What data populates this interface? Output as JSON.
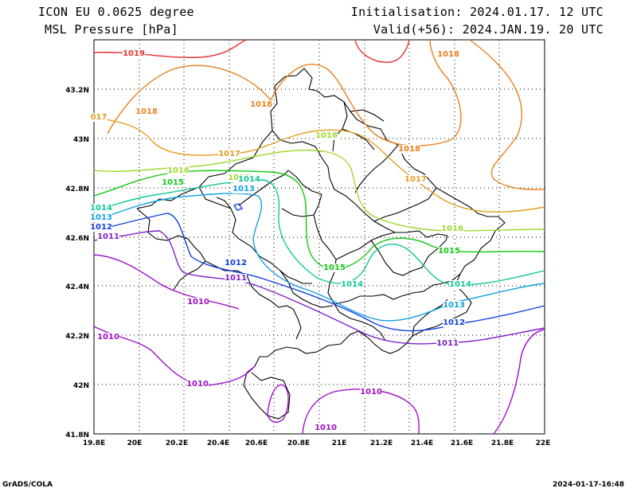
{
  "header": {
    "model": "ICON EU 0.0625 degree",
    "variable": "MSL Pressure [hPa]",
    "init": "Initialisation: 2024.01.17. 12 UTC",
    "valid": "Valid(+56): 2024.JAN.19. 20 UTC"
  },
  "footer": {
    "left": "GrADS/COLA",
    "right": "2024-01-17-16:48"
  },
  "axes": {
    "lat_labels": [
      "43.2N",
      "43N",
      "42.8N",
      "42.6N",
      "42.4N",
      "42.2N",
      "42N",
      "41.8N"
    ],
    "lon_labels": [
      "19.8E",
      "20E",
      "20.2E",
      "20.4E",
      "20.6E",
      "20.8E",
      "21E",
      "21.2E",
      "21.4E",
      "21.6E",
      "21.8E",
      "22E"
    ]
  },
  "colors": {
    "1019": "#e83030",
    "1018": "#e8801e",
    "1017": "#e0a020",
    "1016": "#a0d830",
    "1015": "#10c810",
    "1014": "#10c890",
    "1013": "#10a0e0",
    "1012": "#1040e0",
    "1011": "#8020c8",
    "1010": "#a010c8"
  },
  "contour_labels": [
    {
      "text": "1019",
      "key": "1019"
    },
    {
      "text": "1018",
      "key": "1018"
    },
    {
      "text": "1018",
      "key": "1018"
    },
    {
      "text": "1018",
      "key": "1018"
    },
    {
      "text": "1018",
      "key": "1018"
    },
    {
      "text": "017",
      "key": "1017"
    },
    {
      "text": "1017",
      "key": "1017"
    },
    {
      "text": "1017",
      "key": "1017"
    },
    {
      "text": "1016",
      "key": "1016"
    },
    {
      "text": "1016",
      "key": "1016"
    },
    {
      "text": "1016",
      "key": "1016"
    },
    {
      "text": "1016",
      "key": "1016"
    },
    {
      "text": "1015",
      "key": "1015"
    },
    {
      "text": "1015",
      "key": "1015"
    },
    {
      "text": "1015",
      "key": "1015"
    },
    {
      "text": "1014",
      "key": "1014"
    },
    {
      "text": "1014",
      "key": "1014"
    },
    {
      "text": "1014",
      "key": "1014"
    },
    {
      "text": "1014",
      "key": "1014"
    },
    {
      "text": "1013",
      "key": "1013"
    },
    {
      "text": "1013",
      "key": "1013"
    },
    {
      "text": "1013",
      "key": "1013"
    },
    {
      "text": "1012",
      "key": "1012"
    },
    {
      "text": "1012",
      "key": "1012"
    },
    {
      "text": "1012",
      "key": "1012"
    },
    {
      "text": "1011",
      "key": "1011"
    },
    {
      "text": "1011",
      "key": "1011"
    },
    {
      "text": "1011",
      "key": "1011"
    },
    {
      "text": "1010",
      "key": "1010"
    },
    {
      "text": "1010",
      "key": "1010"
    },
    {
      "text": "1010",
      "key": "1010"
    },
    {
      "text": "1010",
      "key": "1010"
    },
    {
      "text": "1010",
      "key": "1010"
    }
  ]
}
